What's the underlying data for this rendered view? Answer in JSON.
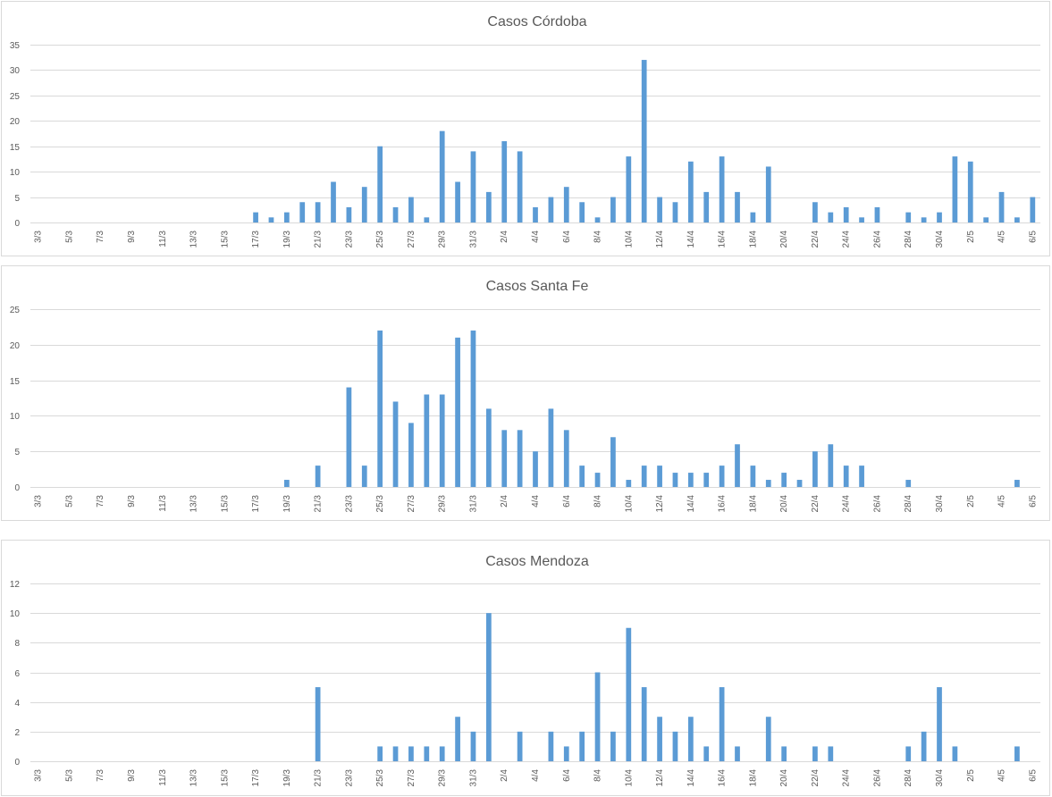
{
  "colors": {
    "bar": "#5b9bd5",
    "grid": "#d9d9d9",
    "text": "#595959"
  },
  "chart_data": [
    {
      "type": "bar",
      "title": "Casos Córdoba",
      "xlabel": "",
      "ylabel": "",
      "ylim": [
        0,
        35
      ],
      "yticks": [
        "0",
        "5",
        "10",
        "15",
        "20",
        "25",
        "30",
        "35"
      ],
      "grid": true,
      "categories": [
        "3/3",
        "4/3",
        "5/3",
        "6/3",
        "7/3",
        "8/3",
        "9/3",
        "10/3",
        "11/3",
        "12/3",
        "13/3",
        "14/3",
        "15/3",
        "16/3",
        "17/3",
        "18/3",
        "19/3",
        "20/3",
        "21/3",
        "22/3",
        "23/3",
        "24/3",
        "25/3",
        "26/3",
        "27/3",
        "28/3",
        "29/3",
        "30/3",
        "31/3",
        "1/4",
        "2/4",
        "3/4",
        "4/4",
        "5/4",
        "6/4",
        "7/4",
        "8/4",
        "9/4",
        "10/4",
        "11/4",
        "12/4",
        "13/4",
        "14/4",
        "15/4",
        "16/4",
        "17/4",
        "18/4",
        "19/4",
        "20/4",
        "21/4",
        "22/4",
        "23/4",
        "24/4",
        "25/4",
        "26/4",
        "27/4",
        "28/4",
        "29/4",
        "30/4",
        "1/5",
        "2/5",
        "3/5",
        "4/5",
        "5/5",
        "6/5"
      ],
      "tick_labels": [
        "3/3",
        "5/3",
        "7/3",
        "9/3",
        "11/3",
        "13/3",
        "15/3",
        "17/3",
        "19/3",
        "21/3",
        "23/3",
        "25/3",
        "27/3",
        "29/3",
        "31/3",
        "2/4",
        "4/4",
        "6/4",
        "8/4",
        "10/4",
        "12/4",
        "14/4",
        "16/4",
        "18/4",
        "20/4",
        "22/4",
        "24/4",
        "26/4",
        "28/4",
        "30/4",
        "2/5",
        "4/5",
        "6/5"
      ],
      "values": [
        0,
        0,
        0,
        0,
        0,
        0,
        0,
        0,
        0,
        0,
        0,
        0,
        0,
        0,
        2,
        1,
        2,
        4,
        4,
        8,
        3,
        7,
        15,
        3,
        5,
        1,
        18,
        8,
        14,
        6,
        16,
        14,
        3,
        5,
        7,
        4,
        1,
        5,
        13,
        32,
        5,
        4,
        12,
        6,
        13,
        6,
        2,
        11,
        0,
        0,
        4,
        2,
        3,
        1,
        3,
        0,
        2,
        1,
        2,
        13,
        12,
        1,
        6,
        1,
        5
      ]
    },
    {
      "type": "bar",
      "title": "Casos Santa Fe",
      "xlabel": "",
      "ylabel": "",
      "ylim": [
        0,
        25
      ],
      "yticks": [
        "0",
        "5",
        "10",
        "15",
        "20",
        "25"
      ],
      "grid": true,
      "categories": [
        "3/3",
        "4/3",
        "5/3",
        "6/3",
        "7/3",
        "8/3",
        "9/3",
        "10/3",
        "11/3",
        "12/3",
        "13/3",
        "14/3",
        "15/3",
        "16/3",
        "17/3",
        "18/3",
        "19/3",
        "20/3",
        "21/3",
        "22/3",
        "23/3",
        "24/3",
        "25/3",
        "26/3",
        "27/3",
        "28/3",
        "29/3",
        "30/3",
        "31/3",
        "1/4",
        "2/4",
        "3/4",
        "4/4",
        "5/4",
        "6/4",
        "7/4",
        "8/4",
        "9/4",
        "10/4",
        "11/4",
        "12/4",
        "13/4",
        "14/4",
        "15/4",
        "16/4",
        "17/4",
        "18/4",
        "19/4",
        "20/4",
        "21/4",
        "22/4",
        "23/4",
        "24/4",
        "25/4",
        "26/4",
        "27/4",
        "28/4",
        "29/4",
        "30/4",
        "1/5",
        "2/5",
        "3/5",
        "4/5",
        "5/5",
        "6/5"
      ],
      "tick_labels": [
        "3/3",
        "5/3",
        "7/3",
        "9/3",
        "11/3",
        "13/3",
        "15/3",
        "17/3",
        "19/3",
        "21/3",
        "23/3",
        "25/3",
        "27/3",
        "29/3",
        "31/3",
        "2/4",
        "4/4",
        "6/4",
        "8/4",
        "10/4",
        "12/4",
        "14/4",
        "16/4",
        "18/4",
        "20/4",
        "22/4",
        "24/4",
        "26/4",
        "28/4",
        "30/4",
        "2/5",
        "4/5",
        "6/5"
      ],
      "values": [
        0,
        0,
        0,
        0,
        0,
        0,
        0,
        0,
        0,
        0,
        0,
        0,
        0,
        0,
        0,
        0,
        1,
        0,
        3,
        0,
        14,
        3,
        22,
        12,
        9,
        13,
        13,
        21,
        22,
        11,
        8,
        8,
        5,
        11,
        8,
        3,
        2,
        7,
        1,
        3,
        3,
        2,
        2,
        2,
        3,
        6,
        3,
        1,
        2,
        1,
        5,
        6,
        3,
        3,
        0,
        0,
        1,
        0,
        0,
        0,
        0,
        0,
        0,
        1,
        0
      ]
    },
    {
      "type": "bar",
      "title": "Casos Mendoza",
      "xlabel": "",
      "ylabel": "",
      "ylim": [
        0,
        12
      ],
      "yticks": [
        "0",
        "2",
        "4",
        "6",
        "8",
        "10",
        "12"
      ],
      "grid": true,
      "categories": [
        "3/3",
        "4/3",
        "5/3",
        "6/3",
        "7/3",
        "8/3",
        "9/3",
        "10/3",
        "11/3",
        "12/3",
        "13/3",
        "14/3",
        "15/3",
        "16/3",
        "17/3",
        "18/3",
        "19/3",
        "20/3",
        "21/3",
        "22/3",
        "23/3",
        "24/3",
        "25/3",
        "26/3",
        "27/3",
        "28/3",
        "29/3",
        "30/3",
        "31/3",
        "1/4",
        "2/4",
        "3/4",
        "4/4",
        "5/4",
        "6/4",
        "7/4",
        "8/4",
        "9/4",
        "10/4",
        "11/4",
        "12/4",
        "13/4",
        "14/4",
        "15/4",
        "16/4",
        "17/4",
        "18/4",
        "19/4",
        "20/4",
        "21/4",
        "22/4",
        "23/4",
        "24/4",
        "25/4",
        "26/4",
        "27/4",
        "28/4",
        "29/4",
        "30/4",
        "1/5",
        "2/5",
        "3/5",
        "4/5",
        "5/5",
        "6/5"
      ],
      "tick_labels": [
        "3/3",
        "5/3",
        "7/3",
        "9/3",
        "11/3",
        "13/3",
        "15/3",
        "17/3",
        "19/3",
        "21/3",
        "23/3",
        "25/3",
        "27/3",
        "29/3",
        "31/3",
        "2/4",
        "4/4",
        "6/4",
        "8/4",
        "10/4",
        "12/4",
        "14/4",
        "16/4",
        "18/4",
        "20/4",
        "22/4",
        "24/4",
        "26/4",
        "28/4",
        "30/4",
        "2/5",
        "4/5",
        "6/5"
      ],
      "values": [
        0,
        0,
        0,
        0,
        0,
        0,
        0,
        0,
        0,
        0,
        0,
        0,
        0,
        0,
        0,
        0,
        0,
        0,
        5,
        0,
        0,
        0,
        1,
        1,
        1,
        1,
        1,
        3,
        2,
        10,
        0,
        2,
        0,
        2,
        1,
        2,
        6,
        2,
        9,
        5,
        3,
        2,
        3,
        1,
        5,
        1,
        0,
        3,
        1,
        0,
        1,
        1,
        0,
        0,
        0,
        0,
        1,
        2,
        5,
        1,
        0,
        0,
        0,
        1,
        0
      ]
    }
  ]
}
